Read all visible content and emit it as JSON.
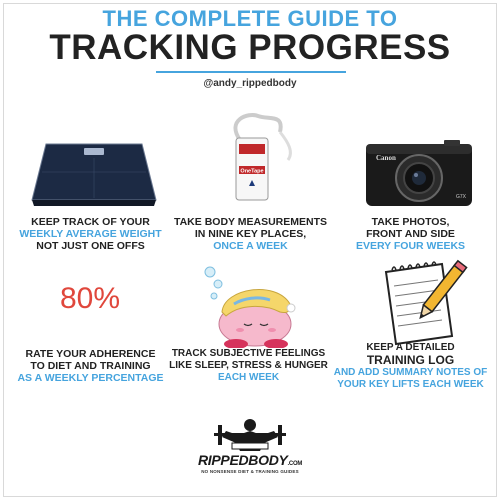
{
  "header": {
    "title_top": "THE COMPLETE GUIDE TO",
    "title_main": "TRACKING PROGRESS",
    "handle": "@andy_rippedbody"
  },
  "tips": [
    {
      "icon": "bathroom-scale-icon",
      "line1": "KEEP TRACK OF YOUR",
      "highlight": "WEEKLY AVERAGE WEIGHT",
      "line3": "NOT JUST ONE OFFS"
    },
    {
      "icon": "measuring-tape-icon",
      "line1": "TAKE BODY MEASUREMENTS",
      "line2": "IN NINE KEY PLACES,",
      "highlight": "ONCE A WEEK"
    },
    {
      "icon": "camera-icon",
      "line1": "TAKE PHOTOS,",
      "line2": "FRONT AND SIDE",
      "highlight": "EVERY FOUR WEEKS"
    },
    {
      "icon": "percent-text",
      "value": "80%",
      "line1": "RATE YOUR ADHERENCE",
      "line2": "TO DIET AND TRAINING",
      "highlight": "AS A WEEKLY PERCENTAGE"
    },
    {
      "icon": "sleeping-kirby-icon",
      "line1": "TRACK SUBJECTIVE FEELINGS",
      "line2": "LIKE SLEEP, STRESS & HUNGER",
      "highlight": "EACH WEEK"
    },
    {
      "icon": "notepad-pencil-icon",
      "line1": "KEEP A DETAILED",
      "line2": "TRAINING LOG",
      "highlight": "AND ADD SUMMARY NOTES OF",
      "highlight2": "YOUR KEY LIFTS EACH WEEK"
    }
  ],
  "tape_label": "OneTape",
  "camera_brand": "Canon",
  "camera_model": "G7X",
  "footer": {
    "logo_word": "RIPPEDBODY",
    "logo_suffix": ".COM",
    "tagline": "NO NONSENSE DIET & TRAINING GUIDES"
  },
  "colors": {
    "accent": "#46a4de",
    "text": "#222222",
    "percent": "#e0473c"
  }
}
